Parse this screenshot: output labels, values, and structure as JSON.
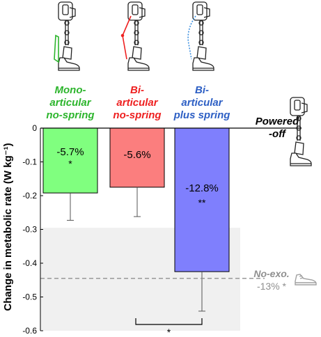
{
  "chart_data": {
    "type": "bar",
    "ylabel": "Change in metabolic rate (W kg⁻¹)",
    "ylim": [
      -0.6,
      0
    ],
    "yticks": [
      0,
      -0.1,
      -0.2,
      -0.3,
      -0.4,
      -0.5,
      -0.6
    ],
    "tick_labels": [
      "0",
      "-0.1",
      "-0.2",
      "-0.3",
      "-0.4",
      "-0.5",
      "-0.6"
    ],
    "categories": [
      [
        "Mono-",
        "articular",
        "no-spring"
      ],
      [
        "Bi-",
        "articular",
        "no-spring"
      ],
      [
        "Bi-",
        "articular",
        "plus spring"
      ]
    ],
    "values": [
      -0.192,
      -0.175,
      -0.425
    ],
    "error_low": [
      -0.273,
      -0.262,
      -0.542
    ],
    "percent_labels": [
      "-5.7%",
      "-5.6%",
      "-12.8%"
    ],
    "significance": [
      "*",
      "",
      "**"
    ],
    "colors": [
      "#80ff7f",
      "#fb7e7e",
      "#7f7ffd"
    ],
    "label_colors": [
      "#2db52d",
      "#ee2020",
      "#2d5fc4"
    ],
    "baseline_label": [
      "Powered",
      "-off"
    ],
    "no_exo": {
      "value": -0.445,
      "band": [
        -0.295,
        -0.6
      ],
      "title": "No-exo.",
      "label": "-13% *",
      "color": "#8f8f8f",
      "band_color": "#f0f0f0"
    },
    "comparison": {
      "from": 1,
      "to": 2,
      "label": "*"
    }
  }
}
